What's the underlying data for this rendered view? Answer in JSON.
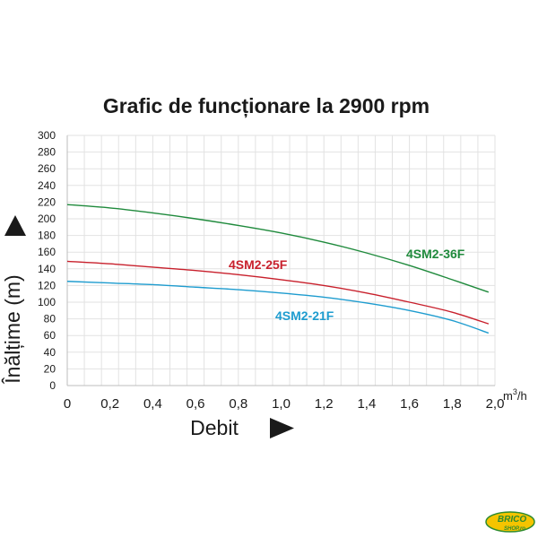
{
  "chart_data": {
    "type": "line",
    "title": "Grafic de funcționare la 2900 rpm",
    "xlabel": "Debit",
    "ylabel": "Înălțime (m)",
    "x_unit": "m³/h",
    "x_unit_base": "m",
    "x_unit_sup": "3",
    "x_unit_tail": "/h",
    "xlim": [
      0,
      2.0
    ],
    "ylim": [
      0,
      300
    ],
    "x_ticks": [
      "0",
      "0,2",
      "0,4",
      "0,6",
      "0,8",
      "1,0",
      "1,2",
      "1,4",
      "1,6",
      "1,8",
      "2,0"
    ],
    "y_ticks": [
      "0",
      "20",
      "40",
      "60",
      "80",
      "100",
      "120",
      "140",
      "160",
      "180",
      "200",
      "220",
      "240",
      "260",
      "280",
      "300"
    ],
    "grid": true,
    "series": [
      {
        "name": "4SM2-36F",
        "color": "#1f8a3c",
        "x": [
          0,
          0.2,
          0.4,
          0.6,
          0.8,
          1.0,
          1.2,
          1.4,
          1.6,
          1.8,
          1.97
        ],
        "y": [
          217,
          213,
          207,
          200,
          192,
          183,
          172,
          159,
          144,
          127,
          112
        ]
      },
      {
        "name": "4SM2-25F",
        "color": "#c8202c",
        "x": [
          0,
          0.2,
          0.4,
          0.6,
          0.8,
          1.0,
          1.2,
          1.4,
          1.6,
          1.8,
          1.97
        ],
        "y": [
          149,
          146,
          142,
          138,
          133,
          127,
          120,
          111,
          100,
          88,
          74
        ]
      },
      {
        "name": "4SM2-21F",
        "color": "#1e9ccf",
        "x": [
          0,
          0.2,
          0.4,
          0.6,
          0.8,
          1.0,
          1.2,
          1.4,
          1.6,
          1.8,
          1.97
        ],
        "y": [
          125,
          123,
          121,
          118,
          115,
          111,
          106,
          99,
          90,
          78,
          63
        ]
      }
    ]
  },
  "logo": {
    "text_main": "BRICO",
    "text_sub": "SHOP.ro",
    "colors": {
      "yellow": "#f5c400",
      "green": "#2e8b2e"
    }
  }
}
